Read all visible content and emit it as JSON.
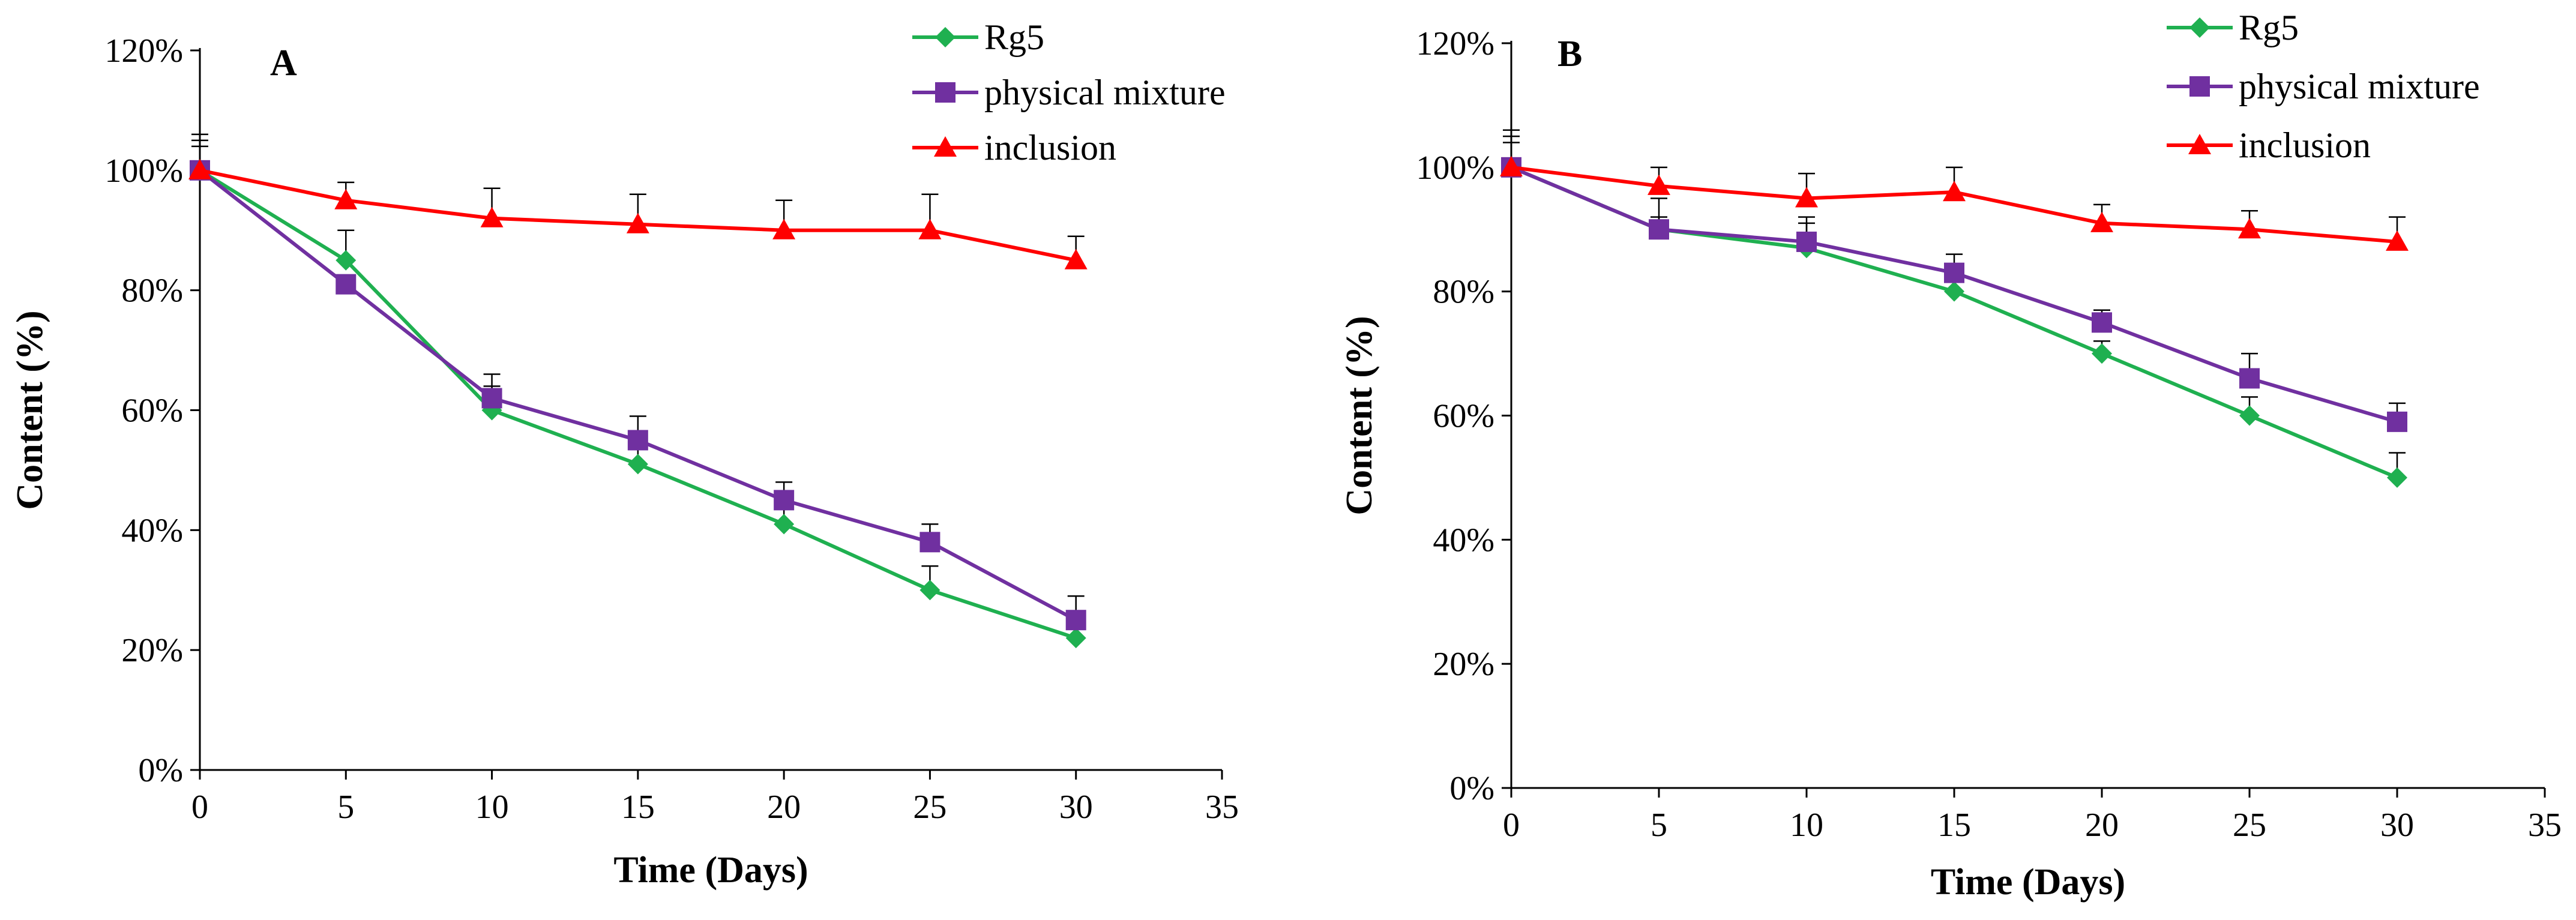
{
  "chart_data": [
    {
      "type": "line",
      "panel_label": "A",
      "xlabel": "Time (Days)",
      "ylabel": "Content (%)",
      "xlim": [
        0,
        35
      ],
      "ylim": [
        0,
        120
      ],
      "x_ticks": [
        0,
        5,
        10,
        15,
        20,
        25,
        30,
        35
      ],
      "x_tick_labels": [
        "0",
        "5",
        "10",
        "15",
        "20",
        "25",
        "30",
        "35"
      ],
      "y_ticks": [
        0,
        20,
        40,
        60,
        80,
        100,
        120
      ],
      "y_tick_labels": [
        "0%",
        "20%",
        "40%",
        "60%",
        "80%",
        "100%",
        "120%"
      ],
      "grid": false,
      "legend_position": "top-right",
      "x": [
        0,
        5,
        10,
        15,
        20,
        25,
        30
      ],
      "series": [
        {
          "name": "Rg5",
          "color": "#1fb050",
          "marker": "diamond",
          "values": [
            100,
            85,
            60,
            51,
            41,
            30,
            22
          ],
          "errors": [
            5,
            5,
            4,
            4,
            3,
            4,
            2
          ]
        },
        {
          "name": "physical mixture",
          "color": "#7030a0",
          "marker": "square",
          "values": [
            100,
            81,
            62,
            55,
            45,
            38,
            25
          ],
          "errors": [
            6,
            1,
            4,
            4,
            3,
            3,
            4
          ]
        },
        {
          "name": "inclusion",
          "color": "#ff0000",
          "marker": "triangle",
          "values": [
            100,
            95,
            92,
            91,
            90,
            90,
            85
          ],
          "errors": [
            4,
            3,
            5,
            5,
            5,
            6,
            4
          ]
        }
      ]
    },
    {
      "type": "line",
      "panel_label": "B",
      "xlabel": "Time (Days)",
      "ylabel": "Content (%)",
      "xlim": [
        0,
        35
      ],
      "ylim": [
        0,
        120
      ],
      "x_ticks": [
        0,
        5,
        10,
        15,
        20,
        25,
        30,
        35
      ],
      "x_tick_labels": [
        "0",
        "5",
        "10",
        "15",
        "20",
        "25",
        "30",
        "35"
      ],
      "y_ticks": [
        0,
        20,
        40,
        60,
        80,
        100,
        120
      ],
      "y_tick_labels": [
        "0%",
        "20%",
        "40%",
        "60%",
        "80%",
        "100%",
        "120%"
      ],
      "grid": false,
      "legend_position": "top-right",
      "x": [
        0,
        5,
        10,
        15,
        20,
        25,
        30
      ],
      "series": [
        {
          "name": "Rg5",
          "color": "#1fb050",
          "marker": "diamond",
          "values": [
            100,
            90,
            87,
            80,
            70,
            60,
            50
          ],
          "errors": [
            5,
            5,
            4,
            3,
            2,
            3,
            4
          ]
        },
        {
          "name": "physical mixture",
          "color": "#7030a0",
          "marker": "square",
          "values": [
            100,
            90,
            88,
            83,
            75,
            66,
            59
          ],
          "errors": [
            6,
            2,
            4,
            3,
            2,
            4,
            3
          ]
        },
        {
          "name": "inclusion",
          "color": "#ff0000",
          "marker": "triangle",
          "values": [
            100,
            97,
            95,
            96,
            91,
            90,
            88
          ],
          "errors": [
            4,
            3,
            4,
            4,
            3,
            3,
            4
          ]
        }
      ]
    }
  ]
}
